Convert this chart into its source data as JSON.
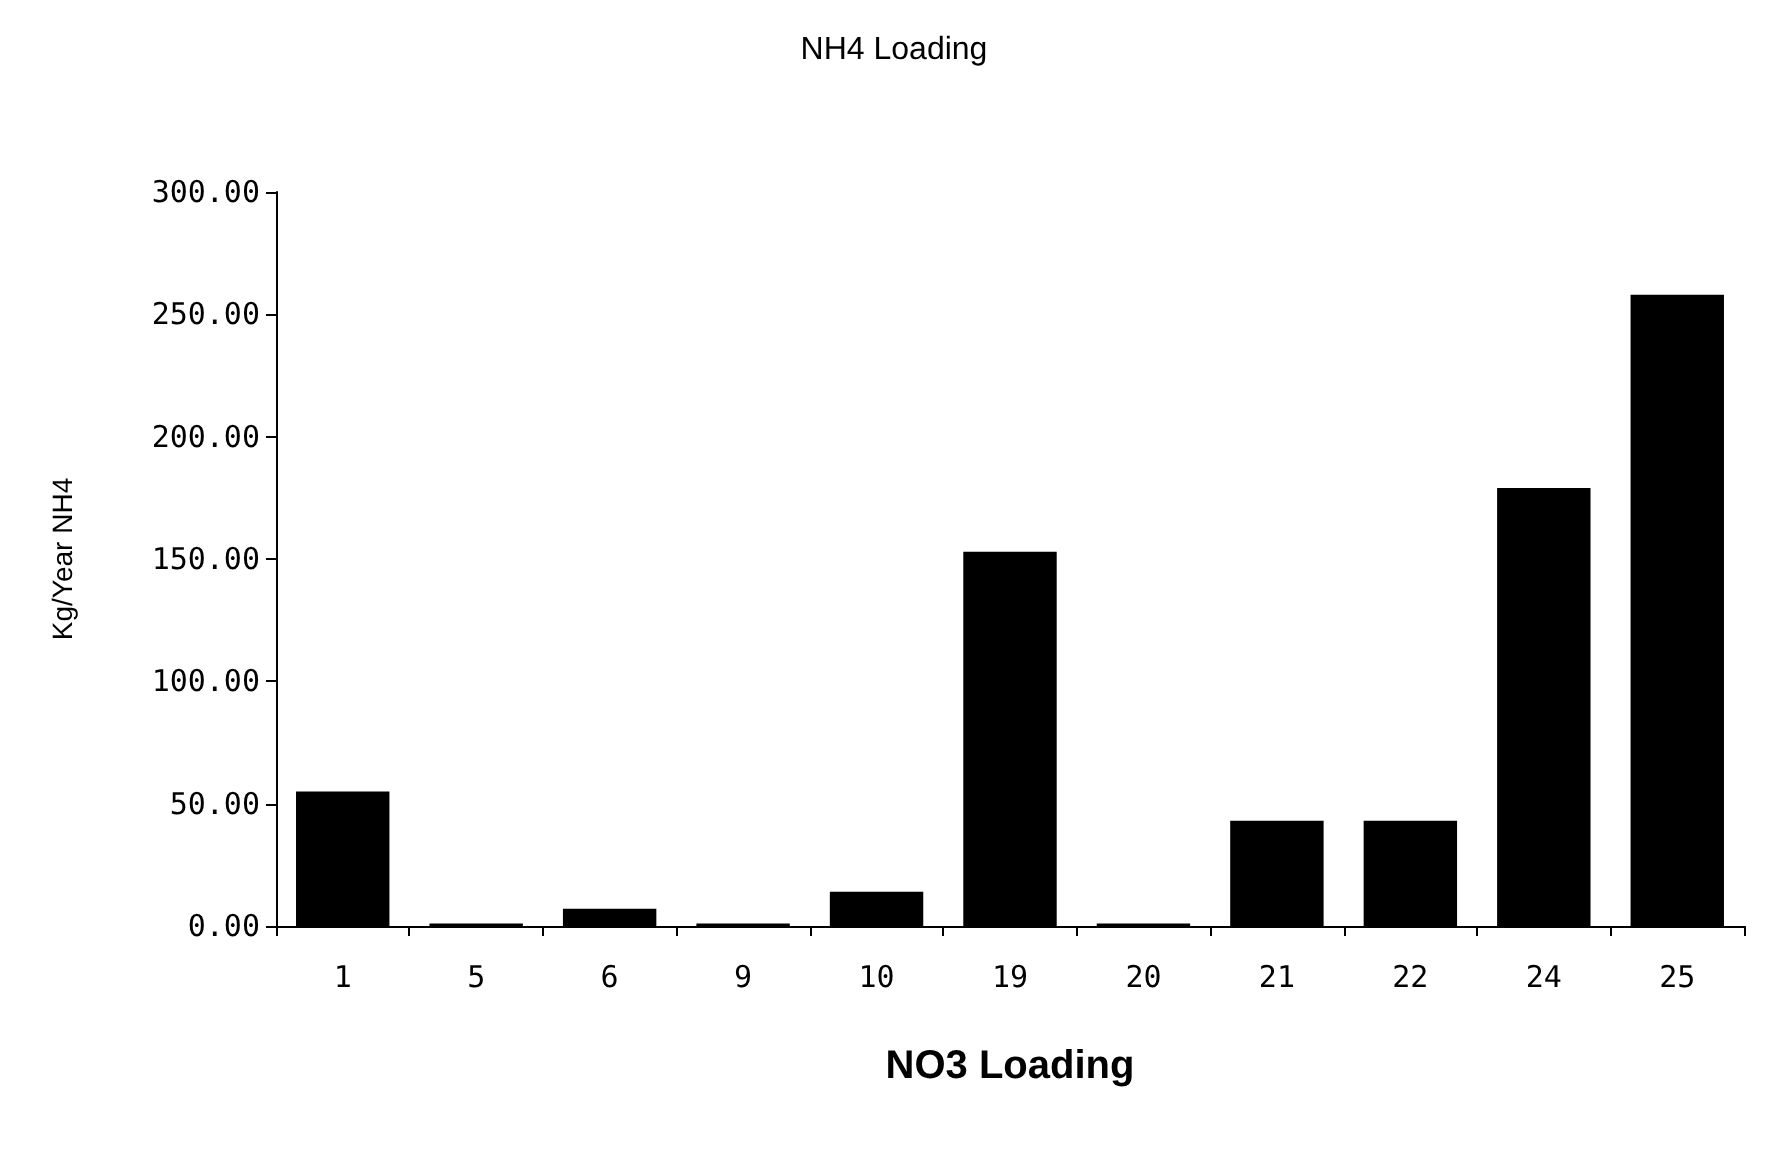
{
  "chart_data": {
    "type": "bar",
    "title": "NH4 Loading",
    "xlabel": "NO3 Loading",
    "ylabel": "Kg/Year NH4",
    "categories": [
      "1",
      "5",
      "6",
      "9",
      "10",
      "19",
      "20",
      "21",
      "22",
      "24",
      "25"
    ],
    "values": [
      55,
      1,
      7,
      1,
      14,
      153,
      1,
      43,
      43,
      179,
      258
    ],
    "color": "#000000",
    "ylim": [
      0,
      300
    ],
    "yticks": [
      {
        "value": 0,
        "label": "0.00"
      },
      {
        "value": 50,
        "label": "50.00"
      },
      {
        "value": 100,
        "label": "100.00"
      },
      {
        "value": 150,
        "label": "150.00"
      },
      {
        "value": 200,
        "label": "200.00"
      },
      {
        "value": 250,
        "label": "250.00"
      },
      {
        "value": 300,
        "label": "300.00"
      }
    ],
    "grid": false
  }
}
